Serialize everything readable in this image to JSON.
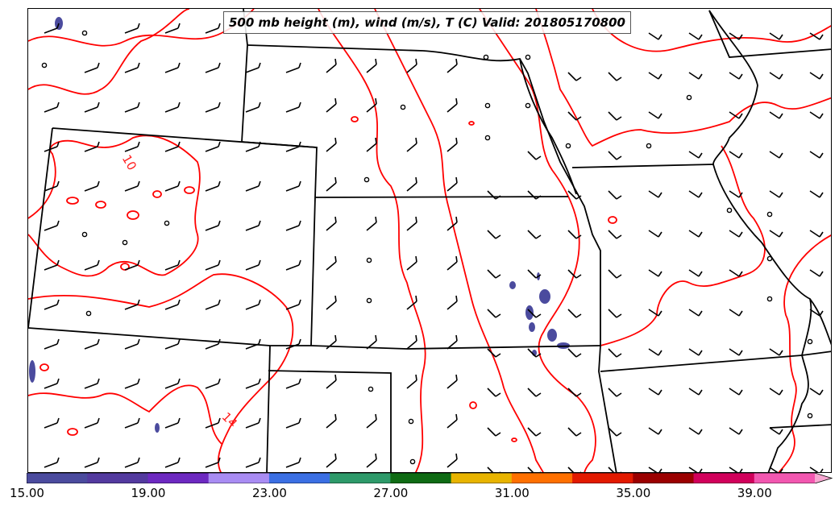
{
  "title": "500 mb height (m), wind (m/s), T (C) Valid: 201805170800",
  "contour_labels": [
    "10",
    "14"
  ],
  "colorbar": {
    "colors": [
      "#4b4b9e",
      "#533a9f",
      "#6d29c1",
      "#a98cf3",
      "#3b6fe3",
      "#2e9a6a",
      "#0f6b14",
      "#e8b400",
      "#ff7000",
      "#e21a00",
      "#9b0000",
      "#d1005b",
      "#f257b0",
      "#f7a8d2"
    ],
    "tick_labels": [
      "15.00",
      "19.00",
      "23.00",
      "27.00",
      "31.00",
      "35.00",
      "39.00"
    ]
  },
  "colors": {
    "contour": "#ff0000",
    "temp_fill": "#4b4b9e",
    "borders": "#000000"
  }
}
